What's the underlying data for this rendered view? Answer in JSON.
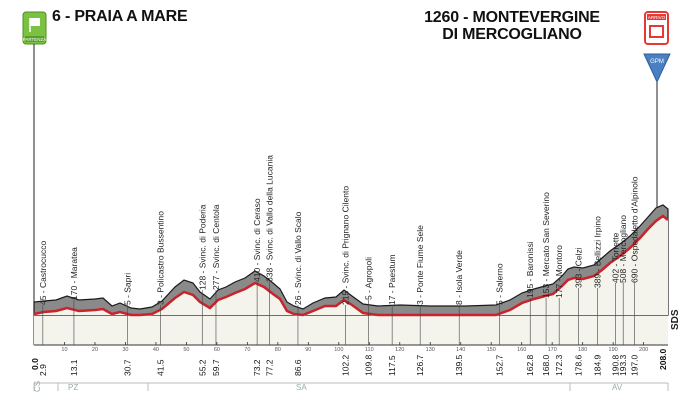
{
  "start": {
    "altitude_name": "6 - PRAIA A MARE",
    "badge_text": "PARTENZA"
  },
  "finish": {
    "line1": "1260 - MONTEVERGINE",
    "line2": "DI MERCOGLIANO",
    "badge_text": "ARRIVO",
    "gpm_text": "GPM"
  },
  "scale_text": "SDS",
  "waypoints": [
    {
      "label": "45 - Castrocucco",
      "km": "2.9"
    },
    {
      "label": "170 - Maratea",
      "km": "13.1"
    },
    {
      "label": "5 - Sapri",
      "km": "30.7"
    },
    {
      "label": "3 - Policastro Bussentino",
      "km": "41.5"
    },
    {
      "label": "128 - Svinc. di Poderia",
      "km": "55.2"
    },
    {
      "label": "277 - Svinc. di Centola",
      "km": "59.7"
    },
    {
      "label": "410 - Svinc. di Ceraso",
      "km": "73.2"
    },
    {
      "label": "338 - Svinc. di Vallo della Lucania",
      "km": "77.2"
    },
    {
      "label": "26 - Svinc. di Vallo Scalo",
      "km": "86.6"
    },
    {
      "label": "215 - Svinc. di Prignano Cilento",
      "km": "102.2"
    },
    {
      "label": "5 - Agropoli",
      "km": "109.8"
    },
    {
      "label": "17 - Paestum",
      "km": "117.5"
    },
    {
      "label": "3 - Ponte Fiume Sele",
      "km": "126.7"
    },
    {
      "label": "8 - Isola Verde",
      "km": "139.5"
    },
    {
      "label": "5 - Salerno",
      "km": "152.7"
    },
    {
      "label": "195 - Baronissi",
      "km": "162.8"
    },
    {
      "label": "153 - Mercato San Severino",
      "km": "168.0"
    },
    {
      "label": "177 - Montoro",
      "km": "172.3"
    },
    {
      "label": "393 - Celzi",
      "km": "178.6"
    },
    {
      "label": "389 - Bellizzi Irpino",
      "km": "184.9"
    },
    {
      "label": "402 - Torrette",
      "km": "190.8"
    },
    {
      "label": "508 - Mercogliano",
      "km": "193.3"
    },
    {
      "label": "690 - Ospedaletto d'Alpinolo",
      "km": "197.0"
    }
  ],
  "km_start": "0.0",
  "km_end": "208.0",
  "axis_ticks": [
    "10",
    "20",
    "30",
    "40",
    "50",
    "60",
    "70",
    "80",
    "90",
    "100",
    "110",
    "120",
    "130",
    "140",
    "150",
    "160",
    "170",
    "180",
    "190",
    "200"
  ],
  "regions": [
    {
      "code": "CS"
    },
    {
      "code": "PZ"
    },
    {
      "code": "SA"
    },
    {
      "code": "AV"
    }
  ],
  "colors": {
    "profile_gray": "#8a8a8a",
    "road_red": "#c8242b",
    "sky_blue": "#4a7fc1",
    "start_green": "#7cc242",
    "finish_red": "#e53935"
  }
}
